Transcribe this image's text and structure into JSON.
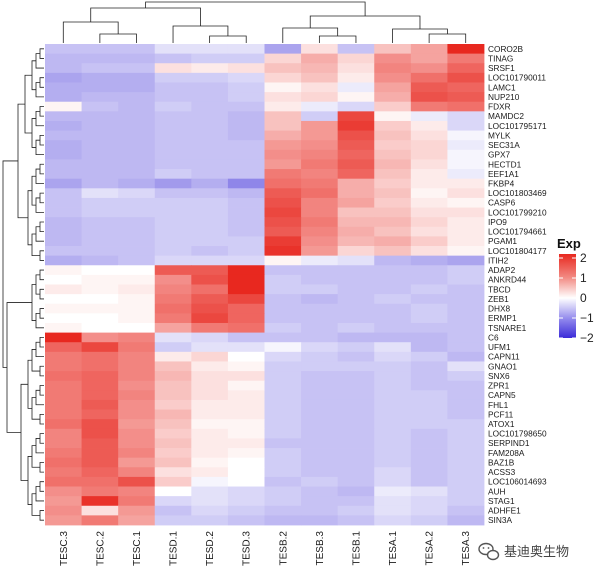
{
  "chart_data": {
    "type": "heatmap",
    "legend": {
      "title": "Exp",
      "ticks": [
        2,
        1,
        0,
        -1,
        -2
      ],
      "range": [
        -2,
        2.2
      ],
      "placement": "right",
      "colors": {
        "low": "#3b2bd8",
        "mid": "#ffffff",
        "high": "#e8281f"
      }
    },
    "columns": [
      "TESC.3",
      "TESC.2",
      "TESC.1",
      "TESD.1",
      "TESD.2",
      "TESD.3",
      "TESB.2",
      "TESB.3",
      "TESB.1",
      "TESA.1",
      "TESA.2",
      "TESA.3"
    ],
    "rows": [
      "CORO2B",
      "TINAG",
      "SRSF1",
      "LOC101790011",
      "LAMC1",
      "NUP210",
      "FDXR",
      "MAMDC2",
      "LOC101795171",
      "MYLK",
      "SEC31A",
      "GPX7",
      "HECTD1",
      "EEF1A1",
      "FKBP4",
      "LOC101803469",
      "CASP6",
      "LOC101799210",
      "IPO9",
      "LOC101794661",
      "PGAM1",
      "LOC101804177",
      "ITIH2",
      "ADAP2",
      "ANKRD44",
      "TBCD",
      "ZEB1",
      "DHX8",
      "ERMP1",
      "TSNARE1",
      "C6",
      "UFM1",
      "CAPN11",
      "GNAO1",
      "SNX6",
      "ZPR1",
      "CAPN5",
      "FHL1",
      "PCF11",
      "ATOX1",
      "LOC101798650",
      "SERPIND1",
      "FAM208A",
      "BAZ1B",
      "ACSS3",
      "LOC106014693",
      "AUH",
      "STAG1",
      "ADHFE1",
      "SIN3A"
    ],
    "values": [
      [
        -0.6,
        -0.6,
        -0.6,
        -0.3,
        -0.3,
        -0.3,
        -0.9,
        0.3,
        -0.6,
        0.6,
        0.9,
        2.1
      ],
      [
        -0.7,
        -0.7,
        -0.7,
        -0.6,
        -0.5,
        -0.5,
        0.4,
        0.8,
        0.4,
        1.1,
        0.9,
        1.3
      ],
      [
        -0.7,
        -0.6,
        -0.6,
        0.3,
        0.2,
        0.3,
        0.6,
        0.7,
        0.3,
        1.2,
        1.1,
        1.5
      ],
      [
        -0.9,
        -0.8,
        -0.8,
        -0.5,
        -0.5,
        -0.4,
        0.4,
        0.6,
        0.2,
        1.1,
        1.4,
        1.7
      ],
      [
        -0.8,
        -0.8,
        -0.8,
        -0.6,
        -0.6,
        -0.5,
        0.1,
        0.3,
        -0.2,
        0.9,
        1.6,
        1.5
      ],
      [
        -0.8,
        -0.7,
        -0.7,
        -0.6,
        -0.6,
        -0.5,
        0.3,
        0.4,
        0.1,
        0.8,
        1.7,
        1.6
      ],
      [
        0.1,
        -0.6,
        -0.7,
        -0.5,
        -0.6,
        -0.6,
        0.2,
        -0.2,
        -0.4,
        0.5,
        1.3,
        1.4
      ],
      [
        -0.7,
        -0.7,
        -0.7,
        -0.6,
        -0.6,
        -0.7,
        0.6,
        -0.5,
        1.8,
        0.1,
        -0.2,
        -0.4
      ],
      [
        -0.8,
        -0.7,
        -0.7,
        -0.6,
        -0.6,
        -0.7,
        0.6,
        1.0,
        1.9,
        0.5,
        0.2,
        -0.4
      ],
      [
        -0.7,
        -0.7,
        -0.7,
        -0.6,
        -0.6,
        -0.7,
        0.8,
        1.0,
        1.7,
        0.6,
        0.3,
        -0.1
      ],
      [
        -0.8,
        -0.7,
        -0.7,
        -0.6,
        -0.6,
        -0.6,
        1.0,
        1.1,
        1.6,
        0.5,
        0.4,
        -0.2
      ],
      [
        -0.8,
        -0.7,
        -0.7,
        -0.6,
        -0.6,
        -0.6,
        1.1,
        1.2,
        1.5,
        0.6,
        0.4,
        -0.1
      ],
      [
        -0.7,
        -0.7,
        -0.7,
        -0.6,
        -0.6,
        -0.6,
        1.0,
        1.3,
        1.6,
        0.7,
        0.3,
        -0.1
      ],
      [
        -0.7,
        -0.7,
        -0.7,
        -0.5,
        -0.6,
        -0.6,
        1.3,
        1.2,
        1.5,
        0.6,
        0.2,
        -0.2
      ],
      [
        -0.9,
        -0.7,
        -0.8,
        -1.0,
        -0.8,
        -1.2,
        1.4,
        1.3,
        0.8,
        0.5,
        0.2,
        0.2
      ],
      [
        -0.6,
        -0.3,
        -0.4,
        -0.6,
        -0.6,
        -0.7,
        1.6,
        1.4,
        0.8,
        0.6,
        0.1,
        0.3
      ],
      [
        -0.6,
        -0.5,
        -0.5,
        -0.5,
        -0.5,
        -0.6,
        1.7,
        1.2,
        0.9,
        0.5,
        0.2,
        0.1
      ],
      [
        -0.6,
        -0.5,
        -0.5,
        -0.5,
        -0.5,
        -0.6,
        1.8,
        1.2,
        0.6,
        0.6,
        0.3,
        0.3
      ],
      [
        -0.7,
        -0.6,
        -0.6,
        -0.5,
        -0.5,
        -0.6,
        1.7,
        1.3,
        0.7,
        0.7,
        0.4,
        0.2
      ],
      [
        -0.7,
        -0.6,
        -0.6,
        -0.5,
        -0.5,
        -0.6,
        1.6,
        1.2,
        0.8,
        0.6,
        0.3,
        0.2
      ],
      [
        -0.7,
        -0.6,
        -0.6,
        -0.5,
        -0.5,
        -0.5,
        1.9,
        1.1,
        0.7,
        0.8,
        0.5,
        0.2
      ],
      [
        -0.6,
        -0.6,
        -0.6,
        -0.5,
        -0.6,
        -0.5,
        2.0,
        1.0,
        0.4,
        0.6,
        0.3,
        0.1
      ],
      [
        -0.8,
        -0.7,
        -0.6,
        -0.4,
        -0.4,
        -0.4,
        0.1,
        -0.2,
        -0.3,
        -0.7,
        -0.8,
        -0.9
      ],
      [
        0.1,
        0.0,
        0.0,
        1.6,
        1.6,
        2.3,
        -0.6,
        -0.6,
        -0.6,
        -0.6,
        -0.6,
        -0.5
      ],
      [
        0.0,
        0.1,
        0.1,
        1.1,
        1.7,
        2.2,
        -0.5,
        -0.6,
        -0.6,
        -0.6,
        -0.6,
        -0.5
      ],
      [
        0.2,
        0.1,
        0.2,
        1.2,
        1.4,
        2.1,
        -0.5,
        -0.5,
        -0.6,
        -0.6,
        -0.5,
        -0.6
      ],
      [
        0.0,
        0.0,
        0.1,
        1.3,
        1.6,
        1.8,
        -0.6,
        -0.7,
        -0.6,
        -0.5,
        -0.6,
        -0.6
      ],
      [
        0.1,
        0.1,
        0.1,
        1.4,
        1.7,
        1.5,
        -0.6,
        -0.6,
        -0.6,
        -0.6,
        -0.5,
        -0.6
      ],
      [
        0.0,
        0.0,
        0.1,
        1.3,
        1.8,
        1.5,
        -0.6,
        -0.6,
        -0.6,
        -0.6,
        -0.5,
        -0.6
      ],
      [
        0.1,
        0.0,
        0.0,
        0.9,
        1.3,
        1.4,
        -0.5,
        -0.6,
        -0.5,
        -0.6,
        -0.6,
        -0.6
      ],
      [
        2.1,
        1.1,
        1.2,
        -0.3,
        -0.4,
        -0.6,
        -0.6,
        -0.6,
        -0.7,
        -0.7,
        -0.7,
        -0.6
      ],
      [
        1.5,
        1.8,
        1.3,
        -0.5,
        -0.3,
        -0.3,
        -0.1,
        -0.4,
        -0.5,
        -0.3,
        -0.7,
        -0.6
      ],
      [
        1.3,
        1.4,
        1.2,
        0.2,
        0.4,
        0.0,
        -0.4,
        -0.5,
        -0.6,
        -0.4,
        -0.5,
        -0.7
      ],
      [
        1.3,
        1.4,
        1.2,
        0.6,
        0.2,
        0.1,
        -0.5,
        -0.5,
        -0.5,
        -0.5,
        -0.6,
        -0.3
      ],
      [
        1.4,
        1.5,
        1.2,
        0.7,
        0.3,
        0.3,
        -0.5,
        -0.6,
        -0.6,
        -0.5,
        -0.6,
        -0.5
      ],
      [
        1.3,
        1.5,
        1.1,
        0.6,
        0.3,
        0.1,
        -0.5,
        -0.6,
        -0.6,
        -0.5,
        -0.6,
        -0.6
      ],
      [
        1.3,
        1.5,
        1.2,
        0.6,
        0.3,
        0.2,
        -0.5,
        -0.6,
        -0.6,
        -0.5,
        -0.5,
        -0.6
      ],
      [
        1.3,
        1.6,
        1.1,
        0.5,
        0.2,
        0.2,
        -0.5,
        -0.6,
        -0.6,
        -0.5,
        -0.5,
        -0.6
      ],
      [
        1.3,
        1.5,
        1.1,
        0.7,
        0.2,
        0.2,
        -0.5,
        -0.6,
        -0.6,
        -0.5,
        -0.5,
        -0.6
      ],
      [
        1.4,
        1.7,
        1.0,
        0.6,
        0.1,
        0.1,
        -0.5,
        -0.6,
        -0.6,
        -0.5,
        -0.5,
        -0.5
      ],
      [
        1.2,
        1.7,
        1.1,
        0.5,
        0.2,
        0.1,
        -0.5,
        -0.6,
        -0.6,
        -0.5,
        -0.6,
        -0.5
      ],
      [
        1.2,
        1.6,
        1.1,
        0.6,
        0.2,
        0.2,
        -0.6,
        -0.6,
        -0.6,
        -0.5,
        -0.6,
        -0.5
      ],
      [
        1.3,
        1.6,
        1.2,
        0.5,
        0.2,
        0.1,
        -0.5,
        -0.6,
        -0.6,
        -0.5,
        -0.6,
        -0.5
      ],
      [
        1.4,
        1.6,
        1.0,
        0.6,
        0.1,
        0.0,
        -0.5,
        -0.6,
        -0.6,
        -0.5,
        -0.6,
        -0.5
      ],
      [
        1.3,
        1.5,
        1.2,
        0.3,
        0.2,
        0.0,
        -0.5,
        -0.6,
        -0.6,
        -0.4,
        -0.6,
        -0.5
      ],
      [
        1.4,
        1.4,
        1.7,
        0.5,
        -0.1,
        0.0,
        -0.6,
        -0.5,
        -0.6,
        -0.4,
        -0.6,
        -0.5
      ],
      [
        1.1,
        1.3,
        1.2,
        0.0,
        -0.3,
        -0.4,
        -0.5,
        -0.6,
        -0.7,
        -0.2,
        -0.3,
        -0.5
      ],
      [
        1.0,
        2.0,
        1.3,
        -0.4,
        -0.3,
        -0.4,
        -0.5,
        -0.6,
        -0.6,
        -0.3,
        -0.4,
        -0.5
      ],
      [
        1.1,
        0.3,
        1.0,
        -0.6,
        -0.4,
        -0.5,
        -0.6,
        -0.6,
        -0.5,
        -0.3,
        -0.4,
        -0.6
      ],
      [
        1.0,
        1.3,
        0.9,
        -0.5,
        -0.5,
        -0.6,
        -0.7,
        -0.7,
        -0.6,
        -0.4,
        -0.5,
        -0.7
      ]
    ]
  },
  "watermark": {
    "icon": "wechat-icon",
    "text": "基迪奥生物"
  }
}
